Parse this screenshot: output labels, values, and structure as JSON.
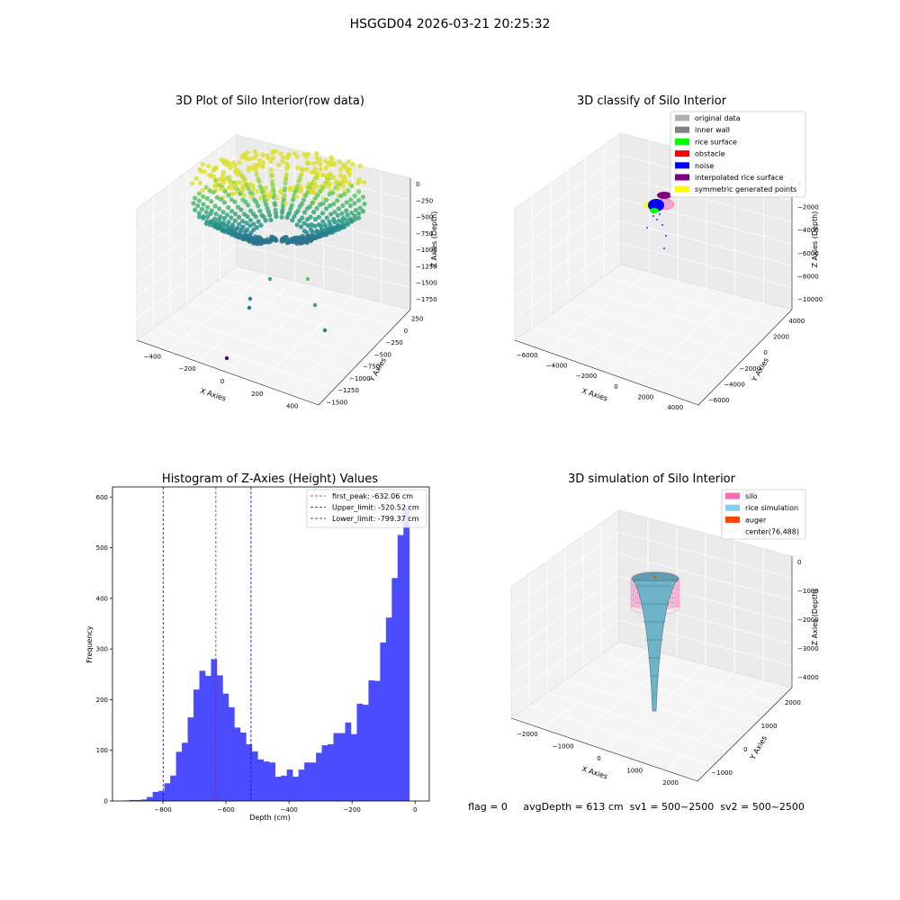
{
  "suptitle": "HSGGD04 2026-03-21 20:25:32",
  "footer": "flag = 0     avgDepth = 613 cm  sv1 = 500~2500  sv2 = 500~2500",
  "colors": {
    "hist_bar": "#4c4cff",
    "first_peak": "#ff0000",
    "limit": "#0000ff",
    "silo": "#ff69b4",
    "rice": "#87ceeb",
    "auger": "#ff4500"
  },
  "chart_data": [
    {
      "type": "scatter",
      "title": "3D Plot of Silo Interior(row data)",
      "xlabel": "X Axies",
      "ylabel": "Y Axies",
      "zlabel": "Z Axies (Depth)",
      "x_ticks": [
        "−400",
        "−200",
        "0",
        "200",
        "400"
      ],
      "y_ticks": [
        "−1500",
        "−1250",
        "−1000",
        "−750",
        "−500",
        "−250",
        "0",
        "250"
      ],
      "z_ticks": [
        "−1750",
        "−1500",
        "−1250",
        "−1000",
        "−750",
        "−500",
        "−250",
        "0"
      ],
      "xlim": [
        -500,
        500
      ],
      "ylim": [
        -1500,
        350
      ],
      "zlim": [
        -1900,
        100
      ],
      "colormap": "viridis"
    },
    {
      "type": "scatter",
      "title": "3D classify of Silo Interior",
      "xlabel": "X Axies",
      "ylabel": "Y Axies",
      "zlabel": "Z Axies (Depth)",
      "x_ticks": [
        "−6000",
        "−4000",
        "−2000",
        "0",
        "2000",
        "4000"
      ],
      "y_ticks": [
        "−6000",
        "−4000",
        "−2000",
        "0",
        "2000",
        "4000"
      ],
      "z_ticks": [
        "−10000",
        "−8000",
        "−6000",
        "−4000",
        "−2000",
        "0"
      ],
      "xlim": [
        -6000,
        5000
      ],
      "ylim": [
        -6000,
        5000
      ],
      "zlim": [
        -11000,
        500
      ],
      "legend_position": "upper-right",
      "legend": [
        {
          "label": "original data",
          "color": "#b0b0b0"
        },
        {
          "label": "inner wall",
          "color": "#808080"
        },
        {
          "label": "rice surface",
          "color": "#00ff00"
        },
        {
          "label": "obstacle",
          "color": "#ff0000"
        },
        {
          "label": "noise",
          "color": "#0000ff"
        },
        {
          "label": "interpolated rice surface",
          "color": "#800080"
        },
        {
          "label": "symmetric generated points",
          "color": "#ffff00"
        }
      ]
    },
    {
      "type": "bar",
      "title": "Histogram of Z-Axies (Height) Values",
      "xlabel": "Depth (cm)",
      "ylabel": "Frequency",
      "xlim": [
        -960,
        45
      ],
      "ylim": [
        0,
        620
      ],
      "x_ticks": [
        -800,
        -600,
        -400,
        -200,
        0
      ],
      "y_ticks": [
        0,
        100,
        200,
        300,
        400,
        500,
        600
      ],
      "bin_width": 18.5,
      "bin_start": -925,
      "values": [
        1,
        2,
        2,
        3,
        8,
        18,
        20,
        35,
        50,
        97,
        115,
        165,
        220,
        257,
        247,
        280,
        248,
        212,
        185,
        145,
        135,
        112,
        98,
        82,
        78,
        76,
        48,
        50,
        62,
        48,
        62,
        76,
        76,
        95,
        110,
        112,
        134,
        134,
        155,
        132,
        192,
        190,
        238,
        237,
        313,
        362,
        440,
        525,
        582
      ],
      "lines": [
        {
          "label": "first_peak: -632.06 cm",
          "value": -632.06,
          "color": "#ff0000"
        },
        {
          "label": "Upper_limit: -520.52 cm",
          "value": -520.52,
          "color": "#0000ff"
        },
        {
          "label": "Lower_limit: -799.37 cm",
          "value": -799.37,
          "color": "#0000ff"
        }
      ],
      "legend_position": "upper-right"
    },
    {
      "type": "surface",
      "title": "3D simulation of Silo Interior",
      "xlabel": "X Axies",
      "ylabel": "Y Axies",
      "zlabel": "Z Axies (Depth)",
      "x_ticks": [
        "−2000",
        "−1000",
        "0",
        "1000",
        "2000"
      ],
      "y_ticks": [
        "−1000",
        "0",
        "1000",
        "2000"
      ],
      "z_ticks": [
        "−4000",
        "−3000",
        "−2000",
        "−1000",
        "0"
      ],
      "xlim": [
        -2500,
        2500
      ],
      "ylim": [
        -1700,
        2500
      ],
      "zlim": [
        -4700,
        300
      ],
      "legend_position": "upper-right",
      "legend": [
        {
          "label": "silo",
          "color": "#ff69b4"
        },
        {
          "label": "rice simulation",
          "color": "#87ceeb"
        },
        {
          "label": "auger",
          "color": "#ff4500"
        },
        {
          "label": "center(76,488)",
          "color": ""
        }
      ]
    }
  ]
}
